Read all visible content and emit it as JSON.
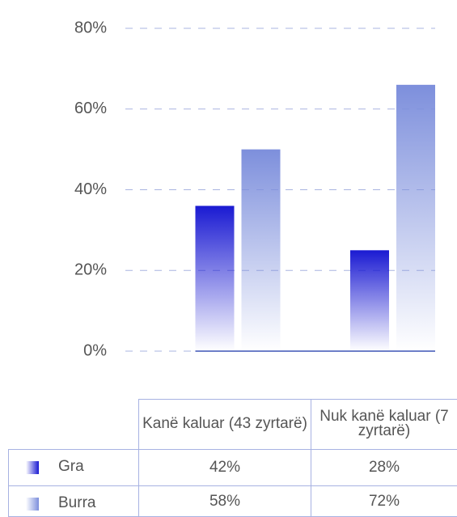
{
  "chart_data": {
    "type": "bar",
    "categories": [
      "Kanë kaluar (43 zyrtarë)",
      "Nuk kanë kaluar (7 zyrtarë)"
    ],
    "series": [
      {
        "name": "Gra",
        "color": "#1a1ad2",
        "values": [
          36,
          25
        ]
      },
      {
        "name": "Burra",
        "color": "#7d8fdc",
        "values": [
          50,
          66
        ]
      }
    ],
    "ylim": [
      0,
      80
    ],
    "yticks": [
      {
        "value": 0,
        "label": "0%"
      },
      {
        "value": 20,
        "label": "20%"
      },
      {
        "value": 40,
        "label": "40%"
      },
      {
        "value": 60,
        "label": "60%"
      },
      {
        "value": 80,
        "label": "80%"
      }
    ],
    "grid": true
  },
  "table": {
    "rows": [
      [
        "42%",
        "28%"
      ],
      [
        "58%",
        "72%"
      ]
    ]
  }
}
